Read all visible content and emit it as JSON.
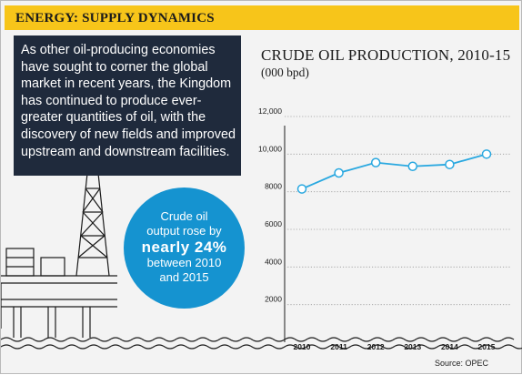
{
  "header": {
    "title": "ENERGY: SUPPLY DYNAMICS"
  },
  "intro": {
    "text": "As other oil-producing economies have sought to corner the global market in recent years, the Kingdom has continued to produce ever-greater quantities of oil, with the discovery of new fields and improved upstream and downstream facilities."
  },
  "callout": {
    "line1": "Crude oil",
    "line2": "output rose by",
    "line3": "nearly 24%",
    "line4": "between 2010",
    "line5": "and 2015"
  },
  "source": "Source: OPEC",
  "colors": {
    "header": "#f7c51a",
    "intro_bg": "#1f2a3c",
    "callout_bg": "#1593d0",
    "line": "#29a8e0",
    "marker_fill": "#ffffff"
  },
  "chart_data": {
    "type": "line",
    "title": "CRUDE OIL PRODUCTION, 2010-15",
    "ylabel": "(000 bpd)",
    "x": [
      "2010",
      "2011",
      "2012",
      "2013",
      "2014",
      "2015"
    ],
    "values": [
      8150,
      9000,
      9550,
      9350,
      9450,
      10000
    ],
    "y_ticks": [
      "2000",
      "4000",
      "6000",
      "8000",
      "10,000",
      "12,000"
    ],
    "ylim": [
      0,
      12000
    ],
    "grid": "horizontal dotted",
    "markers": "hollow circles"
  }
}
